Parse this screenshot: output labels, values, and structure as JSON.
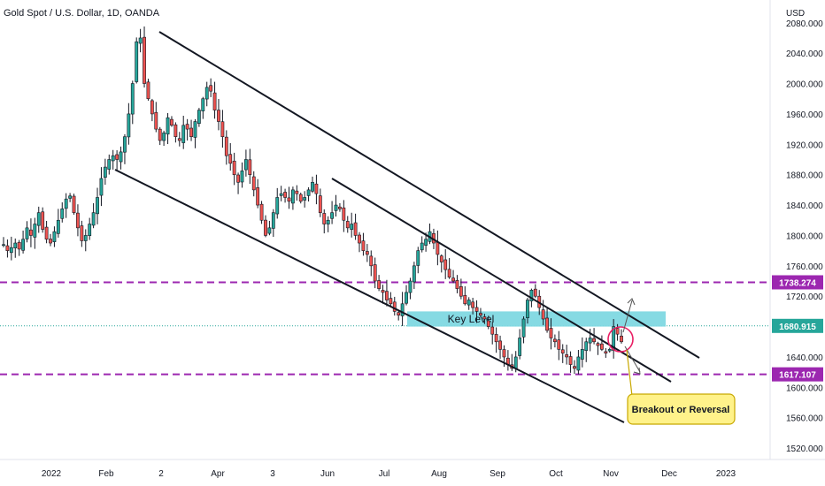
{
  "chart_data": {
    "type": "candlestick",
    "title": "Gold Spot / U.S. Dollar, 1D, OANDA",
    "currency_label": "USD",
    "ylim": [
      1505,
      2110
    ],
    "y_ticks": [
      "1520.000",
      "1560.000",
      "1600.000",
      "1640.000",
      "1680.000",
      "1720.000",
      "1760.000",
      "1800.000",
      "1840.000",
      "1880.000",
      "1920.000",
      "1960.000",
      "2000.000",
      "2040.000",
      "2080.000"
    ],
    "x_ticks": [
      "2022",
      "Feb",
      "2",
      "Apr",
      "3",
      "Jun",
      "Jul",
      "Aug",
      "Sep",
      "Oct",
      "Nov",
      "Dec",
      "2023"
    ],
    "grid": false,
    "price_tags": [
      {
        "label": "1738.274",
        "value": 1738.274,
        "color": "#9c27b0"
      },
      {
        "label": "1680.915",
        "value": 1680.915,
        "color": "#26a69a"
      },
      {
        "label": "1617.107",
        "value": 1617.107,
        "color": "#9c27b0"
      }
    ],
    "horizontal_levels": [
      {
        "value": 1738.274,
        "style": "dashed",
        "color": "#9c27b0"
      },
      {
        "value": 1617.107,
        "style": "dashed",
        "color": "#9c27b0"
      },
      {
        "value": 1680.915,
        "style": "dotted",
        "color": "#26a69a"
      }
    ],
    "zone": {
      "label": "Key Level",
      "from": 1680,
      "to": 1700,
      "color": "#7fd8e2"
    },
    "callout": {
      "label": "Breakout or Reversal",
      "color": "#fff28a"
    },
    "candle_colors": {
      "up": "#26a69a",
      "down": "#ef5350"
    },
    "price_path": [
      1788,
      1780,
      1784,
      1790,
      1782,
      1795,
      1810,
      1800,
      1815,
      1830,
      1808,
      1795,
      1790,
      1805,
      1820,
      1835,
      1848,
      1852,
      1830,
      1810,
      1793,
      1800,
      1815,
      1830,
      1850,
      1875,
      1890,
      1900,
      1905,
      1900,
      1910,
      1930,
      1960,
      2000,
      2055,
      2060,
      2000,
      1980,
      1960,
      1940,
      1925,
      1935,
      1955,
      1945,
      1930,
      1925,
      1945,
      1940,
      1930,
      1950,
      1965,
      1980,
      1995,
      1990,
      1965,
      1950,
      1930,
      1905,
      1895,
      1880,
      1870,
      1885,
      1900,
      1880,
      1860,
      1840,
      1820,
      1800,
      1810,
      1830,
      1850,
      1855,
      1850,
      1845,
      1860,
      1855,
      1845,
      1850,
      1860,
      1870,
      1855,
      1830,
      1815,
      1820,
      1830,
      1840,
      1835,
      1820,
      1810,
      1815,
      1800,
      1790,
      1780,
      1775,
      1760,
      1740,
      1730,
      1725,
      1715,
      1710,
      1700,
      1695,
      1710,
      1725,
      1740,
      1760,
      1780,
      1790,
      1795,
      1805,
      1790,
      1775,
      1765,
      1755,
      1745,
      1740,
      1730,
      1720,
      1710,
      1715,
      1705,
      1700,
      1695,
      1690,
      1680,
      1670,
      1660,
      1650,
      1640,
      1630,
      1625,
      1640,
      1665,
      1690,
      1715,
      1728,
      1720,
      1705,
      1690,
      1675,
      1665,
      1660,
      1650,
      1645,
      1640,
      1630,
      1625,
      1640,
      1650,
      1660,
      1665,
      1660,
      1655,
      1650,
      1645,
      1650,
      1680,
      1670,
      1660
    ]
  },
  "annotations": {
    "zone_label": "Key Level",
    "callout_label": "Breakout or Reversal"
  }
}
